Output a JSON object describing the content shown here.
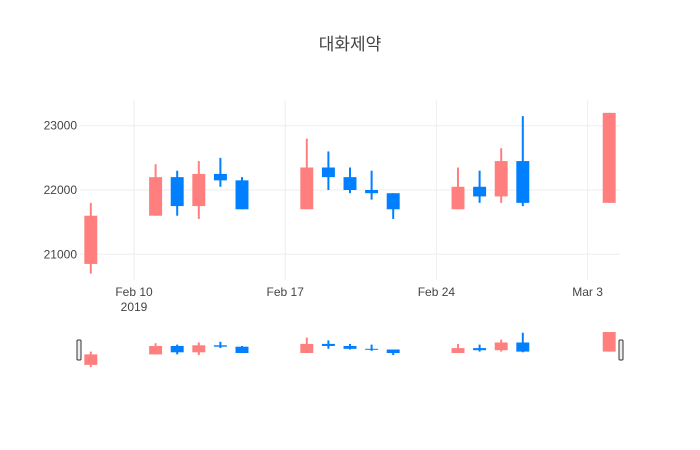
{
  "chart_data": {
    "type": "candlestick",
    "title": "대화제약",
    "xlabel": "",
    "ylabel": "",
    "ylim": [
      20600,
      23400
    ],
    "x_range": [
      "2019-02-07 12:00",
      "2019-03-04 12:00"
    ],
    "grid": true,
    "rangeslider": true,
    "colors": {
      "increasing": "#FF7F7F",
      "decreasing": "#007FFF"
    },
    "y_ticks": [
      "21000",
      "22000",
      "23000"
    ],
    "x_ticks": [
      {
        "date": "2019-02-10",
        "label": "Feb 10",
        "sublabel": "2019"
      },
      {
        "date": "2019-02-17",
        "label": "Feb 17",
        "sublabel": ""
      },
      {
        "date": "2019-02-24",
        "label": "Feb 24",
        "sublabel": ""
      },
      {
        "date": "2019-03-03",
        "label": "Mar 3",
        "sublabel": ""
      }
    ],
    "candles": [
      {
        "date": "2019-02-08",
        "open": 20850,
        "high": 21800,
        "low": 20700,
        "close": 21600
      },
      {
        "date": "2019-02-11",
        "open": 21600,
        "high": 22400,
        "low": 21600,
        "close": 22200
      },
      {
        "date": "2019-02-12",
        "open": 22200,
        "high": 22300,
        "low": 21600,
        "close": 21750
      },
      {
        "date": "2019-02-13",
        "open": 21750,
        "high": 22450,
        "low": 21550,
        "close": 22250
      },
      {
        "date": "2019-02-14",
        "open": 22250,
        "high": 22500,
        "low": 22050,
        "close": 22150
      },
      {
        "date": "2019-02-15",
        "open": 22150,
        "high": 22200,
        "low": 21700,
        "close": 21700
      },
      {
        "date": "2019-02-18",
        "open": 21700,
        "high": 22800,
        "low": 21700,
        "close": 22350
      },
      {
        "date": "2019-02-19",
        "open": 22350,
        "high": 22600,
        "low": 22000,
        "close": 22200
      },
      {
        "date": "2019-02-20",
        "open": 22200,
        "high": 22350,
        "low": 21950,
        "close": 22000
      },
      {
        "date": "2019-02-21",
        "open": 22000,
        "high": 22300,
        "low": 21850,
        "close": 21950
      },
      {
        "date": "2019-02-22",
        "open": 21950,
        "high": 21950,
        "low": 21550,
        "close": 21700
      },
      {
        "date": "2019-02-25",
        "open": 21700,
        "high": 22350,
        "low": 21700,
        "close": 22050
      },
      {
        "date": "2019-02-26",
        "open": 22050,
        "high": 22300,
        "low": 21800,
        "close": 21900
      },
      {
        "date": "2019-02-27",
        "open": 21900,
        "high": 22650,
        "low": 21800,
        "close": 22450
      },
      {
        "date": "2019-02-28",
        "open": 22450,
        "high": 23150,
        "low": 21750,
        "close": 21800
      },
      {
        "date": "2019-03-04",
        "open": 21800,
        "high": 23200,
        "low": 21800,
        "close": 23200
      }
    ]
  }
}
